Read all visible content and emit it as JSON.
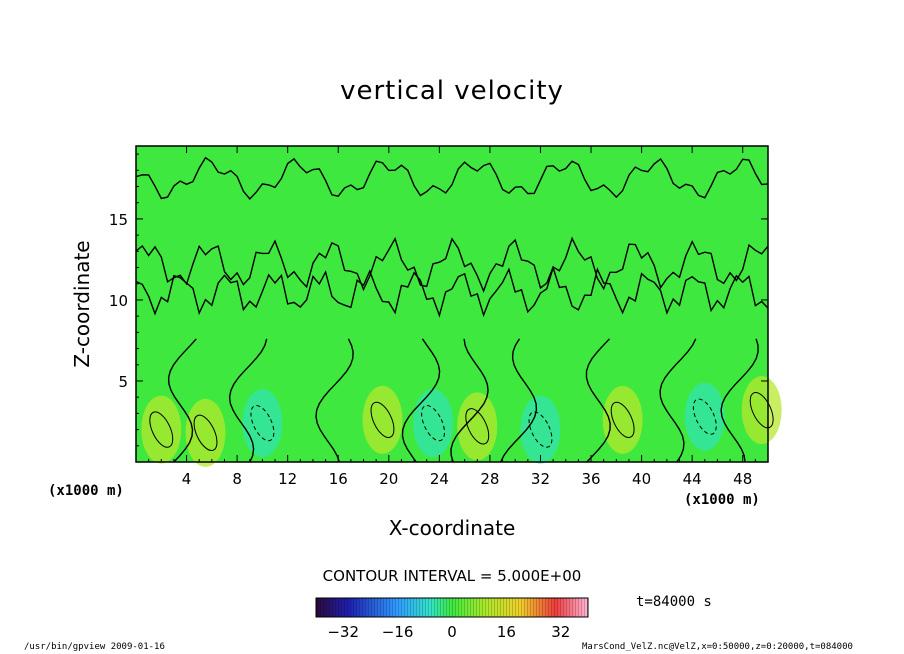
{
  "chart_data": {
    "type": "heatmap",
    "title": "vertical velocity",
    "xlabel": "X-coordinate",
    "ylabel": "Z-coordinate",
    "x_unit": "(x1000 m)",
    "y_unit": "(x1000 m)",
    "xlim": [
      0,
      50
    ],
    "ylim": [
      0,
      19.5
    ],
    "xticks": [
      4,
      8,
      12,
      16,
      20,
      24,
      28,
      32,
      36,
      40,
      44,
      48
    ],
    "yticks": [
      5,
      10,
      15
    ],
    "contour_interval_text": "CONTOUR INTERVAL = 5.000E+00",
    "time_text": "t=84000 s",
    "colorbar": {
      "range": [
        -40,
        40
      ],
      "ticks": [
        -32,
        -16,
        0,
        16,
        32
      ],
      "colormap": "rainbow (purple-blue-cyan-green-yellow-red-pink)"
    },
    "features": [
      {
        "type": "positive",
        "x": 2,
        "z": 2.0,
        "value": 8
      },
      {
        "type": "positive",
        "x": 5.5,
        "z": 1.8,
        "value": 10
      },
      {
        "type": "negative",
        "x": 10,
        "z": 2.4,
        "value": -7
      },
      {
        "type": "positive",
        "x": 19.5,
        "z": 2.6,
        "value": 10
      },
      {
        "type": "negative",
        "x": 23.5,
        "z": 2.4,
        "value": -6
      },
      {
        "type": "positive",
        "x": 27,
        "z": 2.2,
        "value": 9
      },
      {
        "type": "negative",
        "x": 32,
        "z": 2.0,
        "value": -8
      },
      {
        "type": "positive",
        "x": 38.5,
        "z": 2.6,
        "value": 8
      },
      {
        "type": "negative",
        "x": 45,
        "z": 2.8,
        "value": -9
      },
      {
        "type": "positive",
        "x": 49.5,
        "z": 3.2,
        "value": 7
      }
    ]
  },
  "footer": {
    "left": "/usr/bin/gpview  2009-01-16",
    "right": "MarsCond_VelZ.nc@VelZ,x=0:50000,z=0:20000,t=084000"
  }
}
